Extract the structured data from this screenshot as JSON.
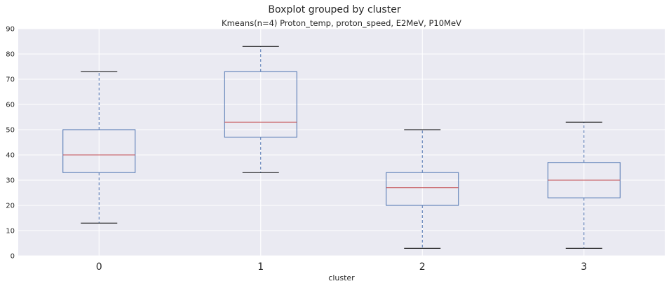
{
  "chart_data": {
    "type": "box",
    "suptitle": "Boxplot grouped by cluster",
    "title": "Kmeans(n=4) Proton_temp, proton_speed, E2MeV, P10MeV",
    "xlabel": "cluster",
    "ylabel": "",
    "ylim": [
      0,
      90
    ],
    "yticks": [
      0,
      10,
      20,
      30,
      40,
      50,
      60,
      70,
      80,
      90
    ],
    "categories": [
      "0",
      "1",
      "2",
      "3"
    ],
    "boxes": [
      {
        "category": "0",
        "whislo": 13,
        "q1": 33,
        "med": 40,
        "q3": 50,
        "whishi": 73
      },
      {
        "category": "1",
        "whislo": 33,
        "q1": 47,
        "med": 53,
        "q3": 73,
        "whishi": 83
      },
      {
        "category": "2",
        "whislo": 3,
        "q1": 20,
        "med": 27,
        "q3": 33,
        "whishi": 50
      },
      {
        "category": "3",
        "whislo": 3,
        "q1": 23,
        "med": 30,
        "q3": 37,
        "whishi": 53
      }
    ],
    "grid": true,
    "colors": {
      "background": "#EAEAF2",
      "grid": "#FFFFFF",
      "box": "#4C72B0",
      "median": "#C44E52",
      "cap": "#000000"
    }
  }
}
